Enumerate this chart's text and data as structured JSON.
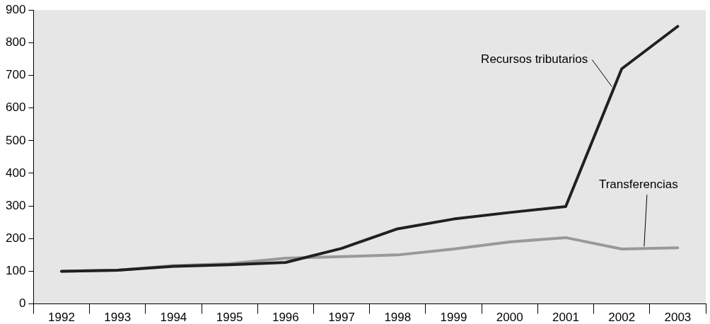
{
  "chart_data": {
    "type": "line",
    "categories": [
      "1992",
      "1993",
      "1994",
      "1995",
      "1996",
      "1997",
      "1998",
      "1999",
      "2000",
      "2001",
      "2002",
      "2003"
    ],
    "series": [
      {
        "name": "Recursos tributarios",
        "color": "#231f20",
        "values": [
          100,
          103,
          115,
          120,
          127,
          170,
          230,
          260,
          280,
          298,
          720,
          850
        ]
      },
      {
        "name": "Transferencias",
        "color": "#999999",
        "values": [
          100,
          103,
          117,
          123,
          140,
          145,
          150,
          168,
          190,
          203,
          168,
          172
        ]
      }
    ],
    "ylim": [
      0,
      900
    ],
    "yticks": [
      0,
      100,
      200,
      300,
      400,
      500,
      600,
      700,
      800,
      900
    ],
    "grid": false,
    "legend": false,
    "marker": "none",
    "line_style": "solid"
  }
}
